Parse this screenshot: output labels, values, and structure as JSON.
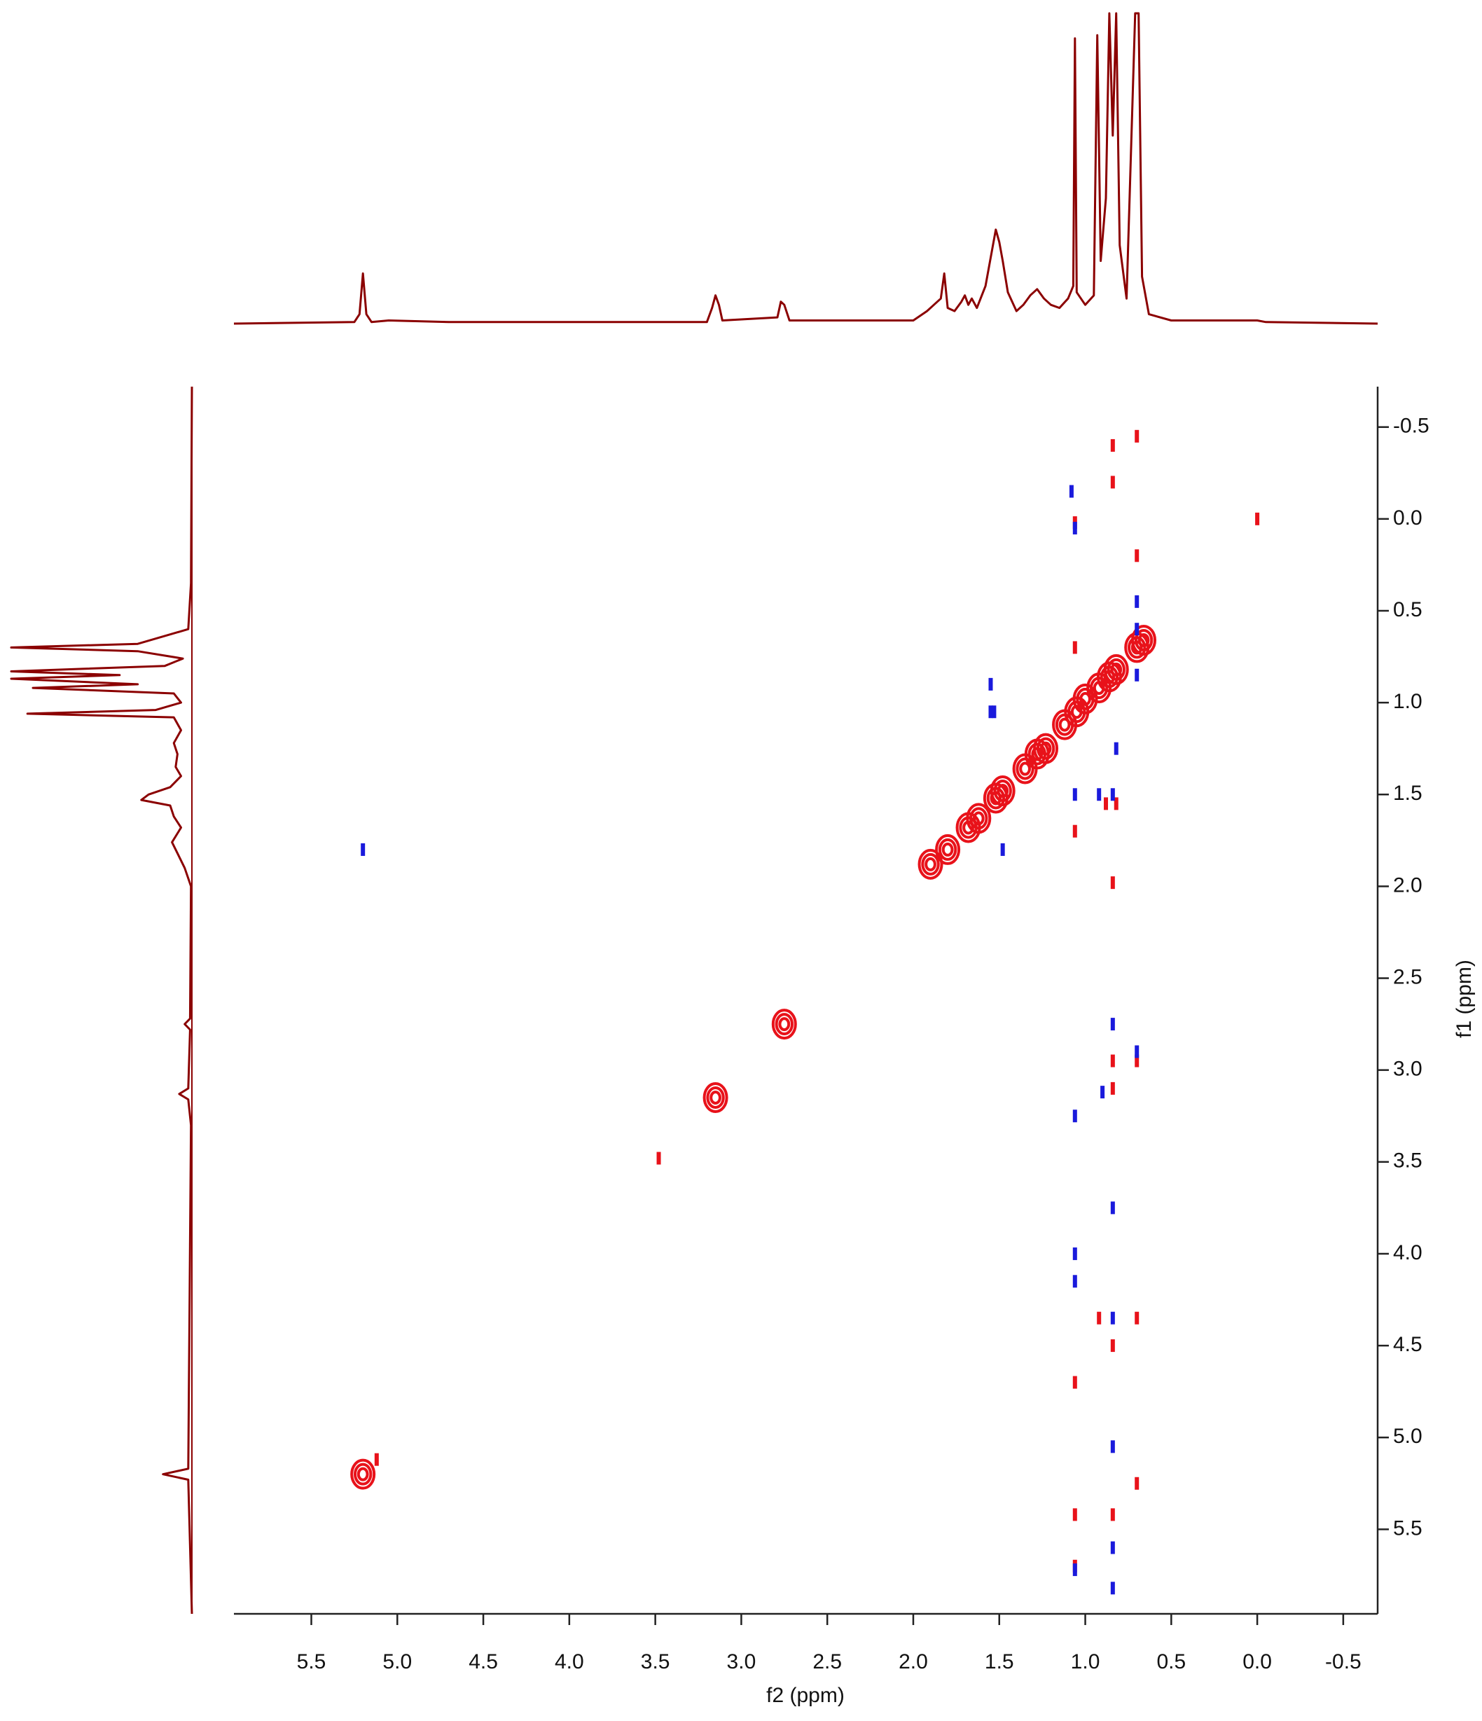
{
  "chart_data": [
    {
      "type": "scatter",
      "x_label": "f2 (ppm)",
      "y_label": "f1 (ppm)",
      "xlim": [
        5.95,
        -0.7
      ],
      "ylim": [
        -0.72,
        5.96
      ],
      "xticks": [
        5.5,
        {
          "value": 5,
          "label": "5.0"
        },
        4.5,
        {
          "value": 4,
          "label": "4.0"
        },
        3.5,
        {
          "value": 3,
          "label": "3.0"
        },
        2.5,
        {
          "value": 2,
          "label": "2.0"
        },
        1.5,
        {
          "value": 1,
          "label": "1.0"
        },
        0.5,
        {
          "value": 0,
          "label": "0.0"
        },
        -0.5
      ],
      "yticks": [
        -0.5,
        {
          "value": 0,
          "label": "0.0"
        },
        0.5,
        {
          "value": 1,
          "label": "1.0"
        },
        1.5,
        {
          "value": 2,
          "label": "2.0"
        },
        2.5,
        {
          "value": 3,
          "label": "3.0"
        },
        3.5,
        {
          "value": 4,
          "label": "4.0"
        },
        4.5,
        {
          "value": 5,
          "label": "5.0"
        },
        5.5
      ],
      "series": [
        {
          "color": "#e8121a",
          "x": [
            1.9,
            1.8,
            1.68,
            1.62,
            1.52,
            1.48,
            1.35,
            1.28,
            1.23,
            1.12,
            1.05,
            1.0,
            0.92,
            0.86,
            0.82,
            0.7,
            0.66,
            2.75,
            3.15,
            5.2
          ],
          "values": [
            1.88,
            1.8,
            1.68,
            1.63,
            1.52,
            1.48,
            1.36,
            1.28,
            1.25,
            1.12,
            1.05,
            0.98,
            0.92,
            0.86,
            0.82,
            0.7,
            0.66,
            2.75,
            3.15,
            5.2
          ]
        },
        {
          "color": "#e8121a",
          "x": [
            3.48,
            5.12,
            0.0,
            0.7,
            0.84,
            0.84,
            1.06,
            0.7,
            1.06,
            1.06,
            0.84,
            0.88,
            0.82,
            0.7,
            0.84,
            0.84,
            1.06,
            0.92,
            0.7,
            0.84,
            0.7,
            1.06,
            0.84,
            1.06
          ],
          "values": [
            3.48,
            5.12,
            0.0,
            -0.45,
            -0.4,
            -0.2,
            0.02,
            0.2,
            0.7,
            1.7,
            1.98,
            1.55,
            1.55,
            2.95,
            2.95,
            3.1,
            4.7,
            4.35,
            4.35,
            4.5,
            5.25,
            5.42,
            5.42,
            5.7
          ]
        },
        {
          "color": "#1a1adc",
          "x": [
            5.2,
            1.08,
            1.06,
            0.7,
            0.7,
            0.7,
            1.55,
            1.55,
            1.53,
            1.48,
            1.06,
            0.92,
            0.84,
            0.82,
            0.84,
            0.7,
            0.9,
            1.06,
            0.84,
            1.06,
            1.06,
            0.84,
            0.84,
            1.06,
            0.84,
            0.84
          ],
          "values": [
            1.8,
            -0.15,
            0.05,
            0.45,
            0.6,
            0.85,
            0.9,
            1.05,
            1.05,
            1.8,
            1.5,
            1.5,
            1.5,
            1.25,
            2.75,
            2.9,
            3.12,
            3.25,
            3.75,
            4.0,
            4.15,
            4.35,
            5.05,
            5.72,
            5.82,
            5.6
          ]
        }
      ]
    },
    {
      "type": "line",
      "color": "#8b0000",
      "x": [
        5.95,
        5.25,
        5.22,
        5.2,
        5.18,
        5.15,
        5.05,
        4.7,
        3.2,
        3.17,
        3.15,
        3.13,
        3.11,
        2.79,
        2.77,
        2.75,
        2.72,
        2.0,
        1.92,
        1.88,
        1.84,
        1.82,
        1.8,
        1.76,
        1.72,
        1.7,
        1.68,
        1.66,
        1.63,
        1.58,
        1.54,
        1.52,
        1.5,
        1.48,
        1.45,
        1.4,
        1.36,
        1.32,
        1.28,
        1.24,
        1.2,
        1.15,
        1.1,
        1.07,
        1.06,
        1.05,
        1.0,
        0.95,
        0.93,
        0.91,
        0.88,
        0.86,
        0.84,
        0.82,
        0.8,
        0.76,
        0.71,
        0.69,
        0.67,
        0.63,
        0.5,
        0.0,
        -0.05,
        -0.7
      ],
      "values": [
        0,
        0.5,
        3,
        16,
        3,
        0.5,
        1,
        0.5,
        0.5,
        5,
        9,
        6,
        1,
        2,
        7,
        6,
        1,
        1,
        4,
        6,
        8,
        16,
        5,
        4,
        7,
        9,
        6,
        8,
        5,
        12,
        24,
        30,
        26,
        20,
        10,
        4,
        6,
        9,
        11,
        8,
        6,
        5,
        8,
        12,
        91,
        10,
        6,
        9,
        92,
        20,
        40,
        99,
        60,
        99,
        25,
        8,
        99,
        99,
        15,
        3,
        1,
        1,
        0.5,
        0
      ]
    },
    {
      "type": "line",
      "orientation": "vertical",
      "color": "#8b0000",
      "x": [
        -0.72,
        0.35,
        0.6,
        0.68,
        0.7,
        0.72,
        0.76,
        0.8,
        0.83,
        0.85,
        0.87,
        0.9,
        0.92,
        0.95,
        1.0,
        1.04,
        1.06,
        1.08,
        1.15,
        1.22,
        1.28,
        1.35,
        1.4,
        1.46,
        1.5,
        1.53,
        1.56,
        1.62,
        1.68,
        1.76,
        1.82,
        1.9,
        2.0,
        2.72,
        2.75,
        2.78,
        3.1,
        3.13,
        3.16,
        3.3,
        5.17,
        5.2,
        5.23,
        5.96
      ],
      "values": [
        0,
        0.5,
        2,
        30,
        100,
        30,
        5,
        15,
        100,
        40,
        100,
        30,
        88,
        10,
        6,
        20,
        91,
        10,
        6,
        10,
        8,
        9,
        6,
        12,
        24,
        28,
        12,
        10,
        6,
        11,
        8,
        4,
        0.5,
        1,
        4,
        1,
        2,
        7,
        2,
        0.5,
        2,
        16,
        2,
        0
      ]
    }
  ]
}
